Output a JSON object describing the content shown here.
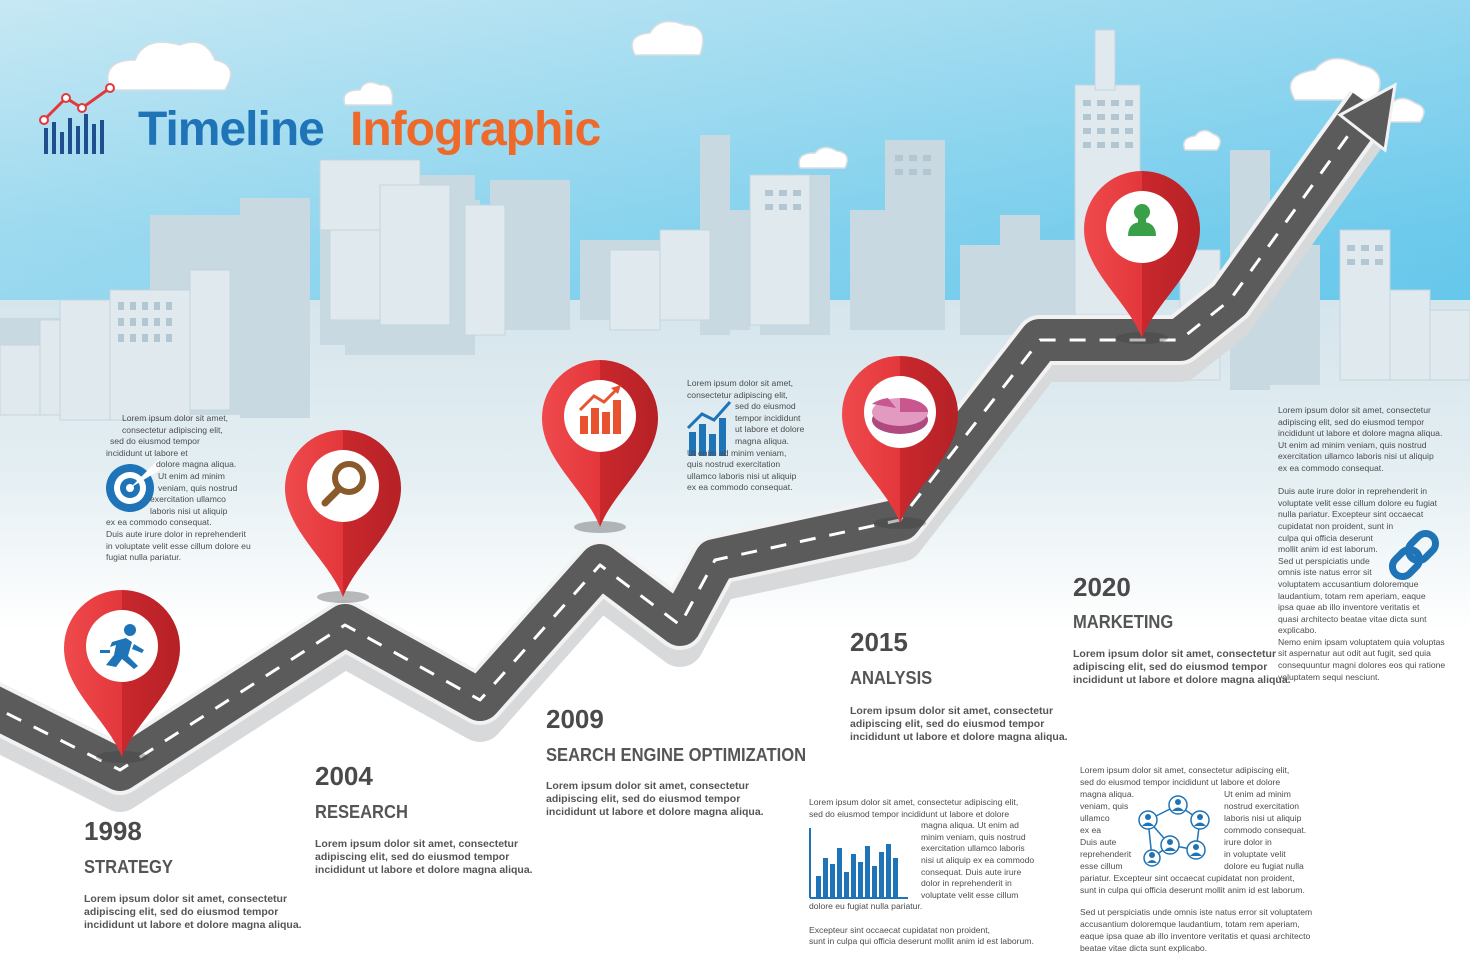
{
  "title": {
    "word1": "Timeline",
    "word2": "Infographic"
  },
  "colors": {
    "title_blue": "#1f73b7",
    "title_orange": "#ee6a2b",
    "pin_red": "#e1383c",
    "road": "#5b5b5b",
    "sky_top": "#a9dcef",
    "sky_bottom": "#5cc4ea"
  },
  "milestones": [
    {
      "year": "1998",
      "label": "STRATEGY",
      "icon": "running-man-icon",
      "desc": [
        "Lorem ipsum dolor sit amet, consectetur",
        "adipiscing elit, sed do eiusmod tempor",
        "incididunt ut labore et dolore magna aliqua."
      ]
    },
    {
      "year": "2004",
      "label": "RESEARCH",
      "icon": "magnifier-icon",
      "desc": [
        "Lorem ipsum dolor sit amet, consectetur",
        "adipiscing elit, sed do eiusmod tempor",
        "incididunt ut labore et dolore magna aliqua."
      ]
    },
    {
      "year": "2009",
      "label": "SEARCH ENGINE OPTIMIZATION",
      "icon": "growth-chart-icon",
      "desc": [
        "Lorem ipsum dolor sit amet, consectetur",
        "adipiscing elit, sed do eiusmod tempor",
        "incididunt ut labore et dolore magna aliqua."
      ]
    },
    {
      "year": "2015",
      "label": "ANALYSIS",
      "icon": "pie-chart-icon",
      "desc": [
        "Lorem ipsum dolor sit amet, consectetur",
        "adipiscing elit, sed do eiusmod tempor",
        "incididunt ut labore et dolore magna aliqua."
      ]
    },
    {
      "year": "2020",
      "label": "MARKETING",
      "icon": "person-icon",
      "desc": [
        "Lorem ipsum dolor sit amet, consectetur",
        "adipiscing elit, sed do eiusmod tempor",
        "incididunt ut labore et dolore magna aliqua."
      ]
    }
  ],
  "text_blocks": {
    "top_left": [
      "Lorem ipsum dolor sit amet,",
      "consectetur adipiscing elit,",
      "sed do eiusmod tempor",
      "incididunt ut labore et",
      "dolore magna aliqua.",
      "Ut enim ad minim",
      "veniam, quis nostrud",
      "exercitation ullamco",
      "laboris nisi ut aliquip",
      "ex ea commodo consequat.",
      "Duis aute irure dolor in reprehenderit",
      "in voluptate velit esse cillum dolore eu",
      "fugiat nulla pariatur."
    ],
    "top_center": [
      "Lorem ipsum dolor sit amet,",
      "consectetur adipiscing elit,",
      "sed do eiusmod",
      "tempor incididunt",
      "ut labore et dolore",
      "magna aliqua.",
      "Ut enim ad minim veniam,",
      "quis nostrud exercitation",
      "ullamco laboris nisi ut aliquip",
      "ex ea commodo consequat."
    ],
    "right_column": [
      "Lorem ipsum dolor sit amet, consectetur",
      "adipiscing elit, sed do eiusmod tempor",
      "incididunt ut labore et dolore magna aliqua.",
      "Ut enim ad minim veniam, quis nostrud",
      "exercitation ullamco laboris nisi ut aliquip",
      "ex ea commodo consequat.",
      "",
      "Duis aute irure dolor in reprehenderit in",
      "voluptate velit esse cillum dolore eu fugiat",
      "nulla pariatur. Excepteur sint occaecat",
      "cupidatat non proident, sunt in",
      "culpa qui officia deserunt",
      "mollit anim id est laborum.",
      "Sed ut perspiciatis unde",
      "omnis iste natus error sit",
      "voluptatem accusantium doloremque",
      "laudantium, totam rem aperiam, eaque",
      "ipsa quae ab illo inventore veritatis et",
      "quasi architecto beatae vitae dicta sunt",
      "explicabo.",
      "Nemo enim ipsam voluptatem quia voluptas",
      "sit aspernatur aut odit aut fugit, sed quia",
      "consequuntur magni dolores eos qui ratione",
      "voluptatem sequi nesciunt."
    ],
    "bottom_center": [
      "Lorem ipsum dolor sit amet, consectetur adipiscing elit,",
      "sed do eiusmod tempor incididunt ut labore et dolore",
      "magna aliqua. Ut enim ad",
      "minim veniam, quis nostrud",
      "exercitation ullamco laboris",
      "nisi ut aliquip ex ea commodo",
      "consequat. Duis aute irure",
      "dolor in reprehenderit in",
      "voluptate velit esse cillum",
      "dolore eu fugiat nulla pariatur.",
      "",
      "Excepteur sint occaecat cupidatat non proident,",
      "sunt in culpa qui officia deserunt mollit anim id est laborum."
    ],
    "bottom_right": [
      "Lorem ipsum dolor sit amet, consectetur adipiscing elit,",
      "sed do eiusmod tempor incididunt ut labore et dolore",
      "magna aliqua.",
      "veniam, quis",
      "ullamco",
      "ex ea",
      "Duis aute",
      "reprehenderit",
      "esse cillum",
      "Ut enim ad minim",
      "nostrud exercitation",
      "laboris nisi ut aliquip",
      "commodo consequat.",
      "irure dolor in",
      "in voluptate velit",
      "dolore eu fugiat nulla",
      "pariatur. Excepteur sint occaecat cupidatat non proident,",
      "sunt in culpa qui officia deserunt mollit anim id est laborum.",
      "Sed ut perspiciatis unde omnis iste natus error sit voluptatem",
      "accusantium doloremque laudantium, totam rem aperiam,",
      "eaque ipsa quae ab illo inventore veritatis et quasi architecto",
      "beatae vitae dicta sunt explicabo."
    ]
  },
  "decor_icons": [
    "logo-chart-icon",
    "target-icon",
    "bar-chart-icon",
    "link-icon",
    "network-icon",
    "histogram-icon",
    "cloud-icon"
  ]
}
